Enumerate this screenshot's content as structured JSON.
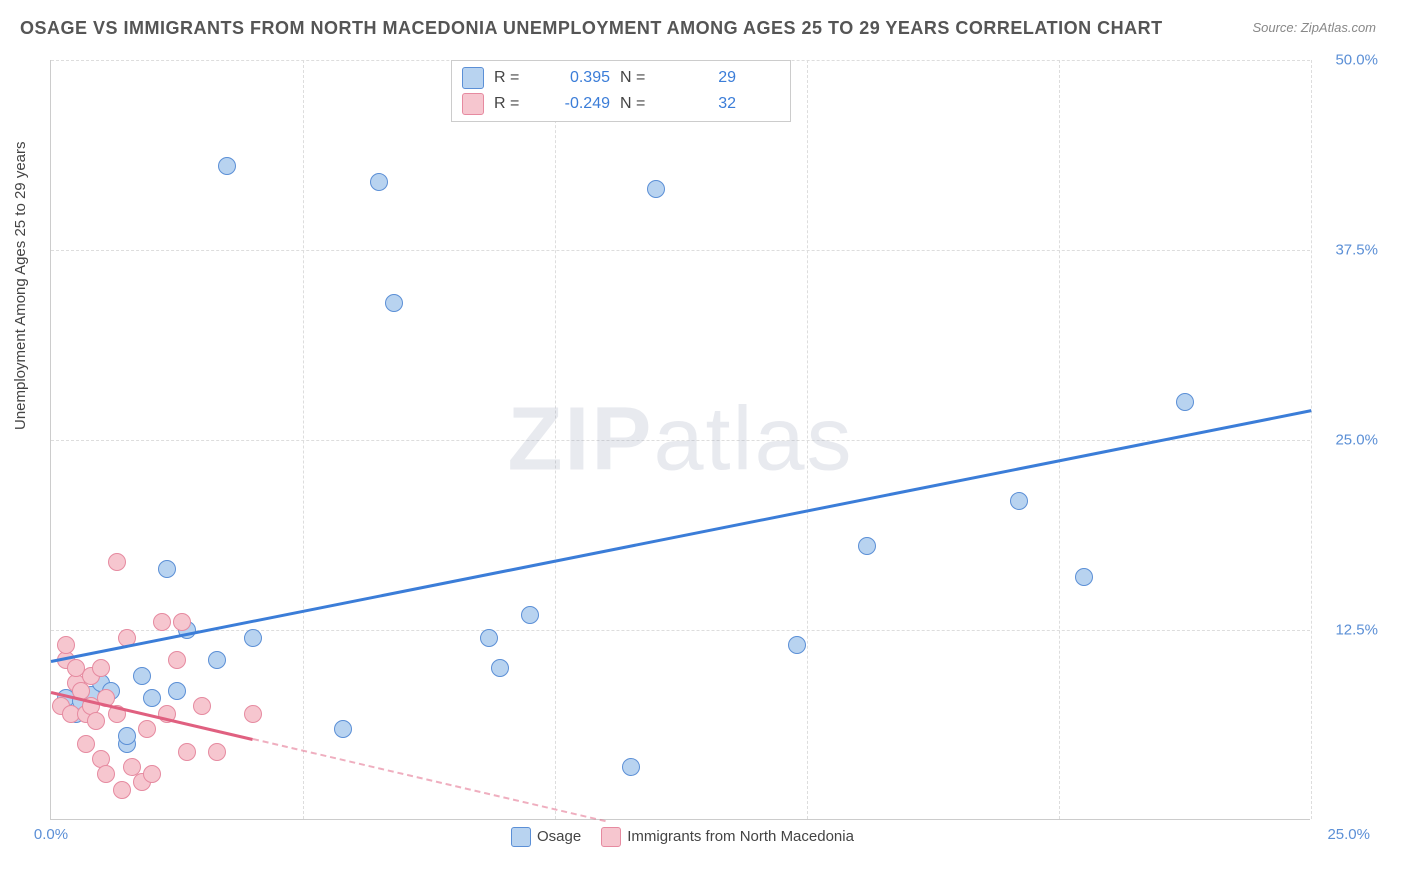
{
  "title": "OSAGE VS IMMIGRANTS FROM NORTH MACEDONIA UNEMPLOYMENT AMONG AGES 25 TO 29 YEARS CORRELATION CHART",
  "source": "Source: ZipAtlas.com",
  "watermark_a": "ZIP",
  "watermark_b": "atlas",
  "ylabel": "Unemployment Among Ages 25 to 29 years",
  "chart": {
    "type": "scatter",
    "xlim": [
      0,
      25
    ],
    "ylim": [
      0,
      50
    ],
    "x_axis_tick_label": "0.0%",
    "x_axis_far_label": "25.0%",
    "y_ticks": [
      {
        "value": 12.5,
        "label": "12.5%"
      },
      {
        "value": 25.0,
        "label": "25.0%"
      },
      {
        "value": 37.5,
        "label": "37.5%"
      },
      {
        "value": 50.0,
        "label": "50.0%"
      }
    ],
    "x_gridlines": [
      5,
      10,
      15,
      20,
      25
    ],
    "series": [
      {
        "name": "Osage",
        "r": "0.395",
        "n": "29",
        "fill": "#b8d3f0",
        "stroke": "#5b8fd6",
        "marker_radius": 9,
        "trend": {
          "x0": 0,
          "y0": 10.5,
          "x1": 25,
          "y1": 27,
          "color": "#3b7dd8",
          "dash_from_x": 25
        },
        "points": [
          {
            "x": 0.3,
            "y": 8.0
          },
          {
            "x": 0.5,
            "y": 7.0
          },
          {
            "x": 0.6,
            "y": 7.8
          },
          {
            "x": 0.8,
            "y": 8.2
          },
          {
            "x": 1.0,
            "y": 9.0
          },
          {
            "x": 1.2,
            "y": 8.5
          },
          {
            "x": 1.5,
            "y": 5.0
          },
          {
            "x": 1.5,
            "y": 5.5
          },
          {
            "x": 1.8,
            "y": 9.5
          },
          {
            "x": 2.0,
            "y": 8.0
          },
          {
            "x": 2.3,
            "y": 16.5
          },
          {
            "x": 2.5,
            "y": 8.5
          },
          {
            "x": 2.7,
            "y": 12.5
          },
          {
            "x": 3.3,
            "y": 10.5
          },
          {
            "x": 3.5,
            "y": 43.0
          },
          {
            "x": 4.0,
            "y": 12.0
          },
          {
            "x": 5.8,
            "y": 6.0
          },
          {
            "x": 6.5,
            "y": 42.0
          },
          {
            "x": 6.8,
            "y": 34.0
          },
          {
            "x": 8.7,
            "y": 12.0
          },
          {
            "x": 8.9,
            "y": 10.0
          },
          {
            "x": 9.5,
            "y": 13.5
          },
          {
            "x": 11.5,
            "y": 3.5
          },
          {
            "x": 12.0,
            "y": 41.5
          },
          {
            "x": 14.8,
            "y": 11.5
          },
          {
            "x": 16.2,
            "y": 18.0
          },
          {
            "x": 19.2,
            "y": 21.0
          },
          {
            "x": 20.5,
            "y": 16.0
          },
          {
            "x": 22.5,
            "y": 27.5
          }
        ]
      },
      {
        "name": "Immigrants from North Macedonia",
        "r": "-0.249",
        "n": "32",
        "fill": "#f6c6cf",
        "stroke": "#e68aa0",
        "marker_radius": 9,
        "trend": {
          "x0": 0,
          "y0": 8.5,
          "x1": 11,
          "y1": 0,
          "color": "#e06080",
          "dash_from_x": 4.0
        },
        "points": [
          {
            "x": 0.2,
            "y": 7.5
          },
          {
            "x": 0.3,
            "y": 10.5
          },
          {
            "x": 0.3,
            "y": 11.5
          },
          {
            "x": 0.4,
            "y": 7.0
          },
          {
            "x": 0.5,
            "y": 9.0
          },
          {
            "x": 0.5,
            "y": 10.0
          },
          {
            "x": 0.6,
            "y": 8.5
          },
          {
            "x": 0.7,
            "y": 7.0
          },
          {
            "x": 0.7,
            "y": 5.0
          },
          {
            "x": 0.8,
            "y": 9.5
          },
          {
            "x": 0.8,
            "y": 7.5
          },
          {
            "x": 0.9,
            "y": 6.5
          },
          {
            "x": 1.0,
            "y": 10.0
          },
          {
            "x": 1.0,
            "y": 4.0
          },
          {
            "x": 1.1,
            "y": 8.0
          },
          {
            "x": 1.1,
            "y": 3.0
          },
          {
            "x": 1.3,
            "y": 17.0
          },
          {
            "x": 1.3,
            "y": 7.0
          },
          {
            "x": 1.4,
            "y": 2.0
          },
          {
            "x": 1.5,
            "y": 12.0
          },
          {
            "x": 1.6,
            "y": 3.5
          },
          {
            "x": 1.8,
            "y": 2.5
          },
          {
            "x": 1.9,
            "y": 6.0
          },
          {
            "x": 2.0,
            "y": 3.0
          },
          {
            "x": 2.2,
            "y": 13.0
          },
          {
            "x": 2.3,
            "y": 7.0
          },
          {
            "x": 2.5,
            "y": 10.5
          },
          {
            "x": 2.6,
            "y": 13.0
          },
          {
            "x": 2.7,
            "y": 4.5
          },
          {
            "x": 3.0,
            "y": 7.5
          },
          {
            "x": 3.3,
            "y": 4.5
          },
          {
            "x": 4.0,
            "y": 7.0
          }
        ]
      }
    ],
    "legend_bottom": [
      {
        "label": "Osage",
        "fill": "#b8d3f0",
        "stroke": "#5b8fd6"
      },
      {
        "label": "Immigrants from North Macedonia",
        "fill": "#f6c6cf",
        "stroke": "#e68aa0"
      }
    ]
  }
}
